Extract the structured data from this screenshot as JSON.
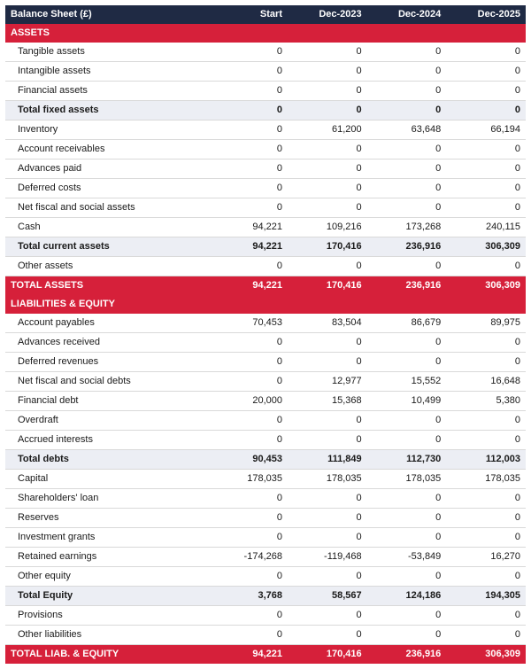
{
  "colors": {
    "header_bg": "#1f2a44",
    "header_fg": "#ffffff",
    "section_bg": "#d6203a",
    "section_fg": "#ffffff",
    "subtotal_bg": "#eceef4",
    "row_border": "#d9d9d9"
  },
  "columns": [
    "Balance Sheet (£)",
    "Start",
    "Dec-2023",
    "Dec-2024",
    "Dec-2025"
  ],
  "rows": [
    {
      "type": "section",
      "label": "ASSETS"
    },
    {
      "type": "line",
      "label": "Tangible assets",
      "indent": true,
      "v": [
        "0",
        "0",
        "0",
        "0"
      ]
    },
    {
      "type": "line",
      "label": "Intangible assets",
      "indent": true,
      "v": [
        "0",
        "0",
        "0",
        "0"
      ]
    },
    {
      "type": "line",
      "label": "Financial assets",
      "indent": true,
      "v": [
        "0",
        "0",
        "0",
        "0"
      ]
    },
    {
      "type": "subtotal",
      "label": "Total fixed assets",
      "indent": true,
      "v": [
        "0",
        "0",
        "0",
        "0"
      ]
    },
    {
      "type": "line",
      "label": "Inventory",
      "indent": true,
      "v": [
        "0",
        "61,200",
        "63,648",
        "66,194"
      ]
    },
    {
      "type": "line",
      "label": "Account receivables",
      "indent": true,
      "v": [
        "0",
        "0",
        "0",
        "0"
      ]
    },
    {
      "type": "line",
      "label": "Advances paid",
      "indent": true,
      "v": [
        "0",
        "0",
        "0",
        "0"
      ]
    },
    {
      "type": "line",
      "label": "Deferred costs",
      "indent": true,
      "v": [
        "0",
        "0",
        "0",
        "0"
      ]
    },
    {
      "type": "line",
      "label": "Net fiscal and social assets",
      "indent": true,
      "v": [
        "0",
        "0",
        "0",
        "0"
      ]
    },
    {
      "type": "line",
      "label": "Cash",
      "indent": true,
      "v": [
        "94,221",
        "109,216",
        "173,268",
        "240,115"
      ]
    },
    {
      "type": "subtotal",
      "label": "Total current assets",
      "indent": true,
      "v": [
        "94,221",
        "170,416",
        "236,916",
        "306,309"
      ]
    },
    {
      "type": "line",
      "label": "Other assets",
      "indent": true,
      "v": [
        "0",
        "0",
        "0",
        "0"
      ]
    },
    {
      "type": "grandtotal",
      "label": "TOTAL ASSETS",
      "v": [
        "94,221",
        "170,416",
        "236,916",
        "306,309"
      ]
    },
    {
      "type": "section",
      "label": "LIABILITIES & EQUITY"
    },
    {
      "type": "line",
      "label": "Account payables",
      "indent": true,
      "v": [
        "70,453",
        "83,504",
        "86,679",
        "89,975"
      ]
    },
    {
      "type": "line",
      "label": "Advances received",
      "indent": true,
      "v": [
        "0",
        "0",
        "0",
        "0"
      ]
    },
    {
      "type": "line",
      "label": "Deferred revenues",
      "indent": true,
      "v": [
        "0",
        "0",
        "0",
        "0"
      ]
    },
    {
      "type": "line",
      "label": "Net fiscal and social debts",
      "indent": true,
      "v": [
        "0",
        "12,977",
        "15,552",
        "16,648"
      ]
    },
    {
      "type": "line",
      "label": "Financial debt",
      "indent": true,
      "v": [
        "20,000",
        "15,368",
        "10,499",
        "5,380"
      ]
    },
    {
      "type": "line",
      "label": "Overdraft",
      "indent": true,
      "v": [
        "0",
        "0",
        "0",
        "0"
      ]
    },
    {
      "type": "line",
      "label": "Accrued interests",
      "indent": true,
      "v": [
        "0",
        "0",
        "0",
        "0"
      ]
    },
    {
      "type": "subtotal",
      "label": "Total debts",
      "indent": true,
      "v": [
        "90,453",
        "111,849",
        "112,730",
        "112,003"
      ]
    },
    {
      "type": "line",
      "label": "Capital",
      "indent": true,
      "v": [
        "178,035",
        "178,035",
        "178,035",
        "178,035"
      ]
    },
    {
      "type": "line",
      "label": "Shareholders' loan",
      "indent": true,
      "v": [
        "0",
        "0",
        "0",
        "0"
      ]
    },
    {
      "type": "line",
      "label": "Reserves",
      "indent": true,
      "v": [
        "0",
        "0",
        "0",
        "0"
      ]
    },
    {
      "type": "line",
      "label": "Investment grants",
      "indent": true,
      "v": [
        "0",
        "0",
        "0",
        "0"
      ]
    },
    {
      "type": "line",
      "label": "Retained earnings",
      "indent": true,
      "v": [
        "-174,268",
        "-119,468",
        "-53,849",
        "16,270"
      ]
    },
    {
      "type": "line",
      "label": "Other equity",
      "indent": true,
      "v": [
        "0",
        "0",
        "0",
        "0"
      ]
    },
    {
      "type": "subtotal",
      "label": "Total Equity",
      "indent": true,
      "v": [
        "3,768",
        "58,567",
        "124,186",
        "194,305"
      ]
    },
    {
      "type": "line",
      "label": "Provisions",
      "indent": true,
      "v": [
        "0",
        "0",
        "0",
        "0"
      ]
    },
    {
      "type": "line",
      "label": "Other liabilities",
      "indent": true,
      "v": [
        "0",
        "0",
        "0",
        "0"
      ]
    },
    {
      "type": "grandtotal",
      "label": "TOTAL LIAB. & EQUITY",
      "v": [
        "94,221",
        "170,416",
        "236,916",
        "306,309"
      ]
    }
  ]
}
